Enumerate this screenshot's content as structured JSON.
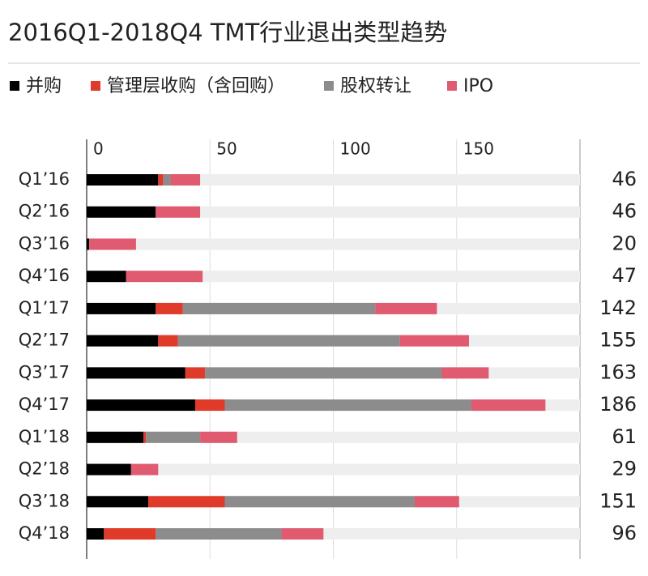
{
  "chart_data": {
    "type": "stacked-barh",
    "title": "2016Q1-2018Q4 TMT行业退出类型趋势",
    "categories": [
      "Q1’16",
      "Q2’16",
      "Q3’16",
      "Q4’16",
      "Q1’17",
      "Q2’17",
      "Q3’17",
      "Q4’17",
      "Q1’18",
      "Q2’18",
      "Q3’18",
      "Q4’18"
    ],
    "series": [
      {
        "name": "并购",
        "color": "#000000",
        "values": [
          29,
          28,
          1,
          16,
          28,
          29,
          40,
          44,
          23,
          18,
          25,
          7
        ]
      },
      {
        "name": "管理层收购（含回购）",
        "color": "#e03a2b",
        "values": [
          2,
          0,
          0,
          0,
          11,
          8,
          8,
          12,
          1,
          0,
          31,
          21
        ]
      },
      {
        "name": "股权转让",
        "color": "#8c8c8c",
        "values": [
          3,
          0,
          0,
          0,
          78,
          90,
          96,
          100,
          22,
          0,
          77,
          51
        ]
      },
      {
        "name": "IPO",
        "color": "#e05a70",
        "values": [
          12,
          18,
          19,
          31,
          25,
          28,
          19,
          30,
          15,
          11,
          18,
          17
        ]
      }
    ],
    "totals": [
      46,
      46,
      20,
      47,
      142,
      155,
      163,
      186,
      61,
      29,
      151,
      96
    ],
    "xlim": [
      0,
      200
    ],
    "xticks": [
      0,
      50,
      100,
      150
    ],
    "grid": true
  }
}
